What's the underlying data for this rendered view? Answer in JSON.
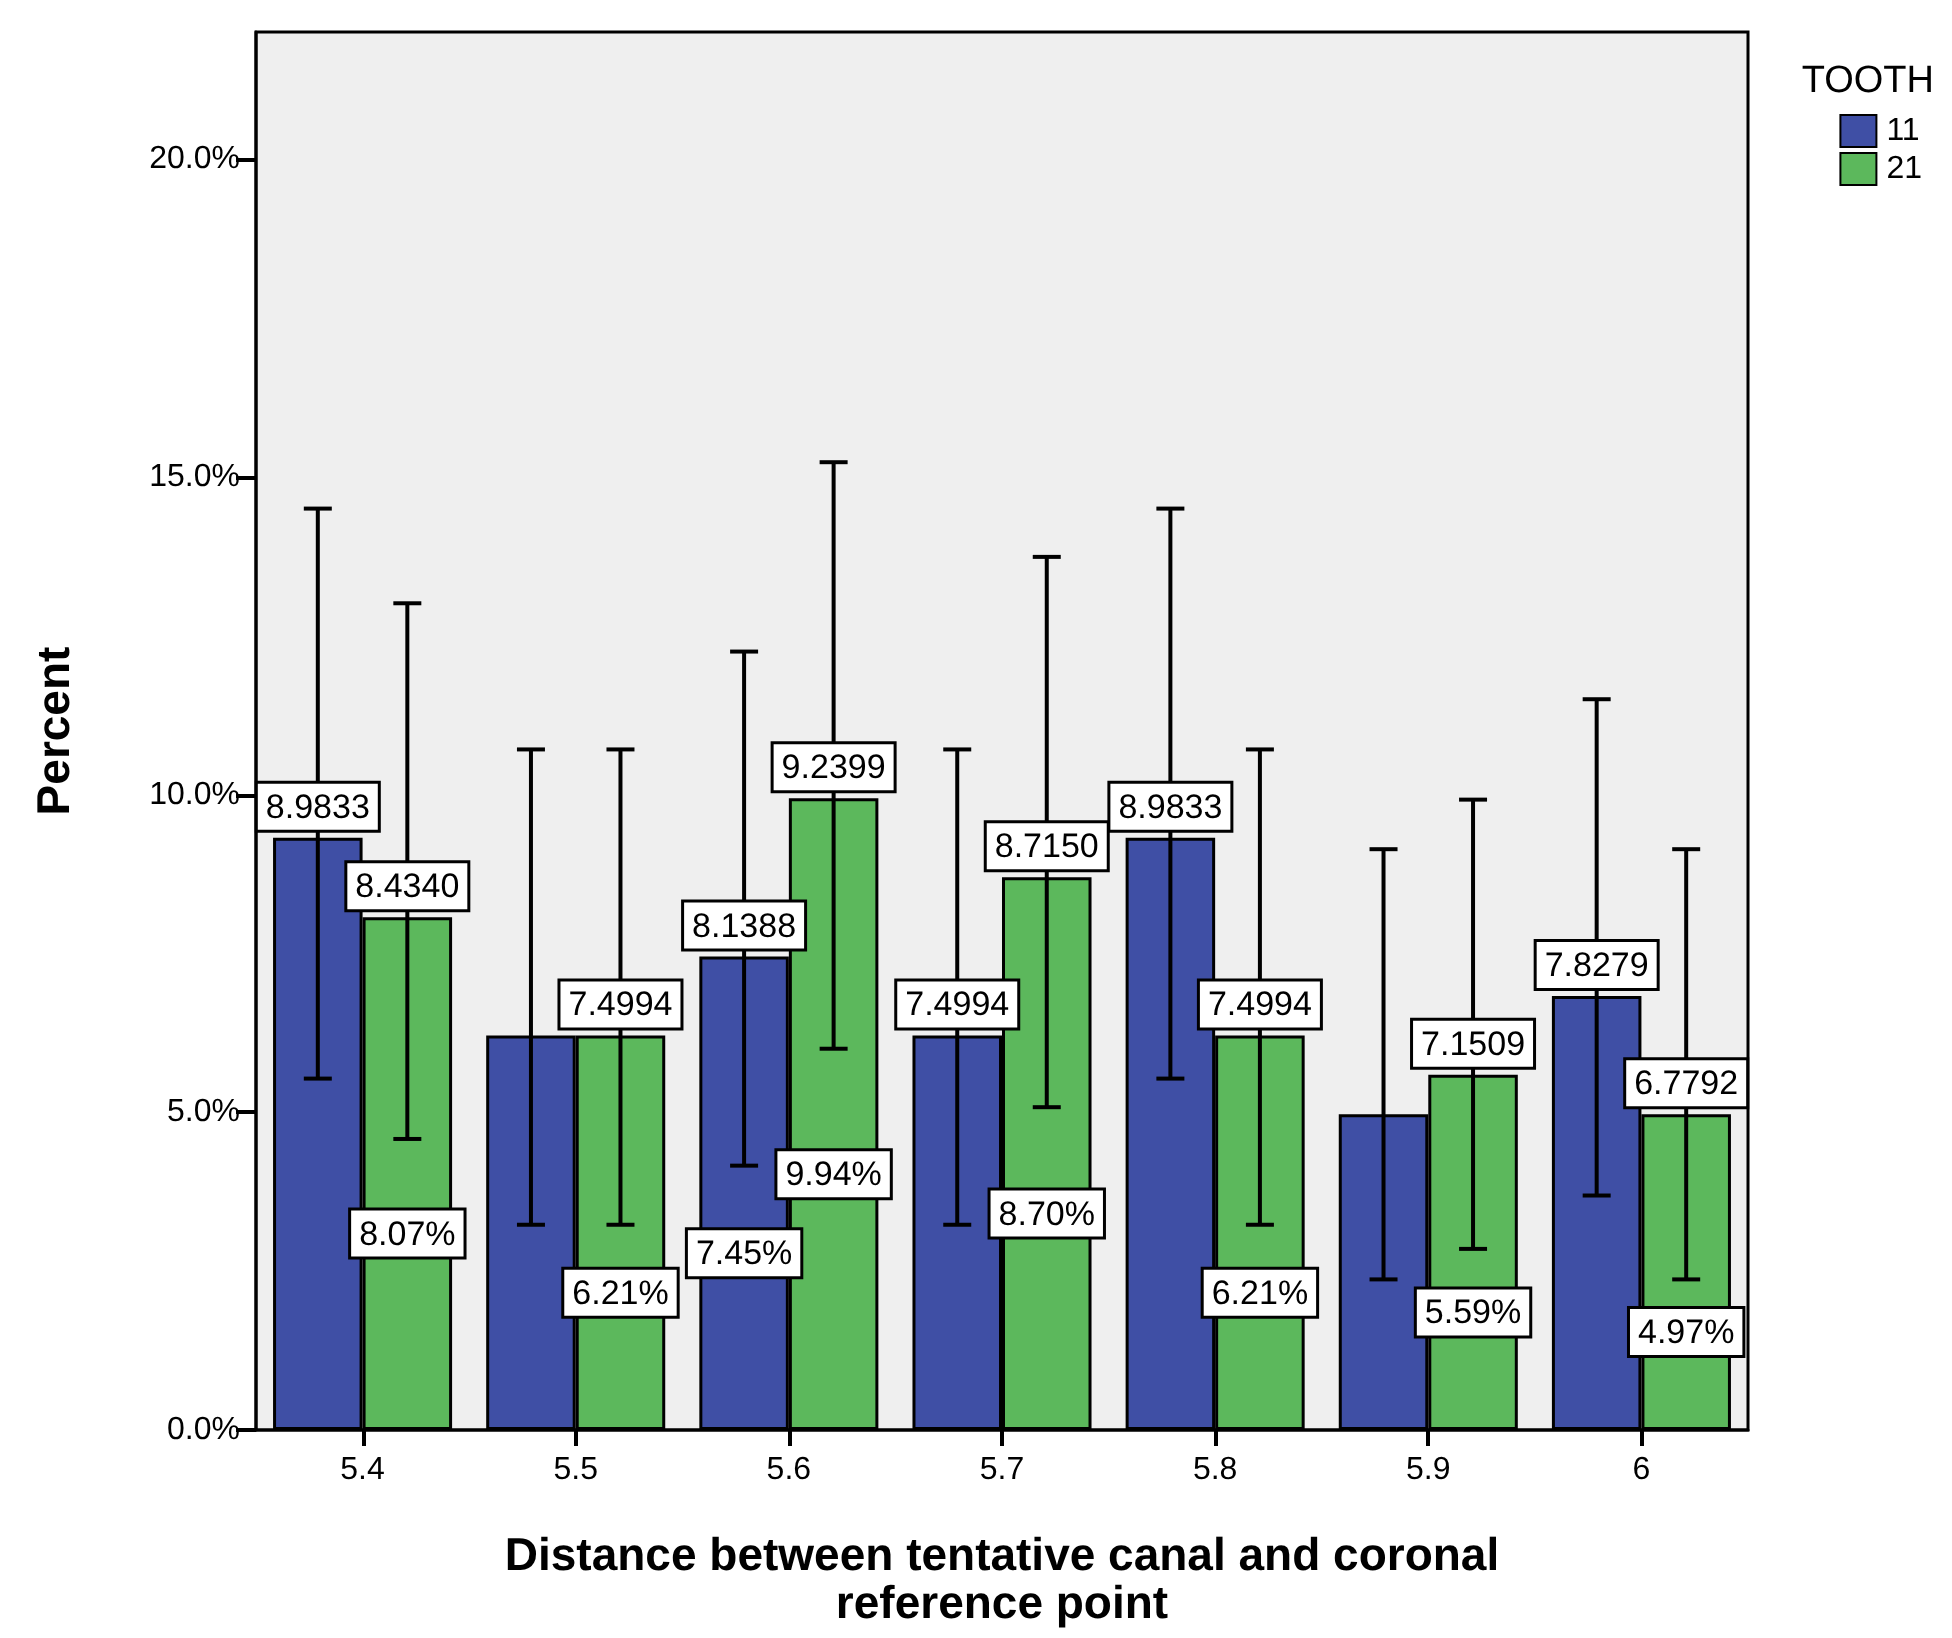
{
  "chart_data": {
    "type": "bar",
    "xlabel": "Distance between tentative canal and coronal\nreference point",
    "ylabel": "Percent",
    "legend_title": "TOOTH",
    "categories": [
      "5.4",
      "5.5",
      "5.6",
      "5.7",
      "5.8",
      "5.9",
      "6"
    ],
    "series": [
      {
        "name": "11",
        "color": "#3f4fa5",
        "values": [
          9.32,
          6.21,
          7.45,
          6.21,
          9.32,
          4.97,
          6.83
        ],
        "errors": [
          [
            5.53,
            14.5
          ],
          [
            3.23,
            10.71
          ],
          [
            4.16,
            12.25
          ],
          [
            3.23,
            10.71
          ],
          [
            5.53,
            14.5
          ],
          [
            2.37,
            9.14
          ],
          [
            3.69,
            11.5
          ]
        ],
        "value_labels": [
          null,
          null,
          "7.45%",
          null,
          null,
          null,
          null
        ]
      },
      {
        "name": "21",
        "color": "#5cb85c",
        "values": [
          8.07,
          6.21,
          9.94,
          8.7,
          6.21,
          5.59,
          4.97
        ],
        "errors": [
          [
            4.58,
            13.01
          ],
          [
            3.23,
            10.71
          ],
          [
            6.0,
            15.23
          ],
          [
            5.08,
            13.74
          ],
          [
            3.23,
            10.71
          ],
          [
            2.85,
            9.92
          ],
          [
            2.37,
            9.14
          ]
        ],
        "value_labels": [
          "8.07%",
          "6.21%",
          "9.94%",
          "8.70%",
          "6.21%",
          "5.59%",
          "4.97%"
        ]
      }
    ],
    "annotations": [
      {
        "text": "8.9833",
        "x": "5.4",
        "y": 9.32
      },
      {
        "text": "8.4340",
        "x": "5.4",
        "y": 8.07
      },
      {
        "text": "7.4994",
        "x": "5.5",
        "y": 6.21
      },
      {
        "text": "8.1388",
        "x": "5.6",
        "y": 7.45
      },
      {
        "text": "9.2399",
        "x": "5.6",
        "y": 9.94
      },
      {
        "text": "7.4994",
        "x": "5.7",
        "y": 6.21
      },
      {
        "text": "8.7150",
        "x": "5.7",
        "y": 8.7
      },
      {
        "text": "8.9833",
        "x": "5.8",
        "y": 9.32
      },
      {
        "text": "7.4994",
        "x": "5.8",
        "y": 6.21
      },
      {
        "text": "7.1509",
        "x": "5.9",
        "y": 5.59
      },
      {
        "text": "7.8279",
        "x": "6",
        "y": 6.83
      },
      {
        "text": "6.7792",
        "x": "6",
        "y": 4.97
      }
    ],
    "ylim": [
      0,
      22
    ],
    "yticks": [
      {
        "value": 0,
        "label": "0.0%"
      },
      {
        "value": 5,
        "label": "5.0%"
      },
      {
        "value": 10,
        "label": "10.0%"
      },
      {
        "value": 15,
        "label": "15.0%"
      },
      {
        "value": 20,
        "label": "20.0%"
      }
    ],
    "grid": false,
    "legend": "top right"
  }
}
